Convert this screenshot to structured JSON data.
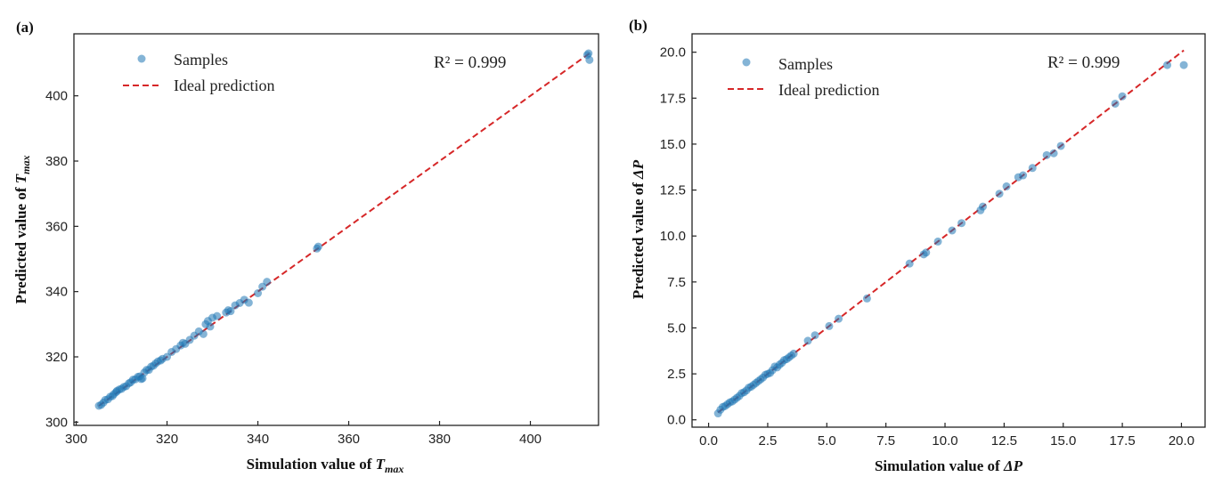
{
  "chart_data": [
    {
      "type": "scatter",
      "panel_label": "(a)",
      "xlabel_prefix": "Simulation value of",
      "ylabel_prefix": "Predicted value of",
      "variable": "T",
      "variable_sub": "max",
      "xlim": [
        299.5,
        415
      ],
      "ylim": [
        299,
        419
      ],
      "xticks": [
        300,
        320,
        340,
        360,
        380,
        400
      ],
      "yticks": [
        300,
        320,
        340,
        360,
        380,
        400
      ],
      "tick_decimals": 0,
      "legend": {
        "position": "top-left",
        "samples": "Samples",
        "ideal": "Ideal prediction"
      },
      "annotation": "R² = 0.999",
      "ideal_line": [
        [
          305,
          305
        ],
        [
          413,
          413
        ]
      ],
      "series": [
        {
          "name": "Samples",
          "points": [
            [
              305,
              305
            ],
            [
              305.5,
              305.3
            ],
            [
              306,
              306
            ],
            [
              306.4,
              306.8
            ],
            [
              307,
              307
            ],
            [
              307.5,
              307.8
            ],
            [
              308,
              308
            ],
            [
              308.3,
              308.6
            ],
            [
              308.8,
              309.2
            ],
            [
              309,
              309.6
            ],
            [
              309.5,
              310
            ],
            [
              310,
              310.2
            ],
            [
              310.5,
              310.8
            ],
            [
              311,
              311
            ],
            [
              311.6,
              311.9
            ],
            [
              312,
              312.2
            ],
            [
              312.5,
              313
            ],
            [
              313,
              313.1
            ],
            [
              313.6,
              313.9
            ],
            [
              314,
              314
            ],
            [
              314.3,
              313.2
            ],
            [
              314.6,
              313.4
            ],
            [
              315,
              315.2
            ],
            [
              315.5,
              316
            ],
            [
              316,
              316
            ],
            [
              316.5,
              317
            ],
            [
              317,
              317.3
            ],
            [
              317.5,
              318
            ],
            [
              318,
              318.6
            ],
            [
              318.6,
              318.9
            ],
            [
              319,
              319.4
            ],
            [
              320,
              320
            ],
            [
              321,
              321.5
            ],
            [
              322,
              322.4
            ],
            [
              323,
              323.5
            ],
            [
              323.5,
              324.3
            ],
            [
              324,
              324
            ],
            [
              325,
              325.2
            ],
            [
              326,
              326.5
            ],
            [
              327,
              327.8
            ],
            [
              328,
              327
            ],
            [
              328.5,
              330
            ],
            [
              329,
              331
            ],
            [
              329.5,
              329.3
            ],
            [
              330,
              332
            ],
            [
              331,
              332.5
            ],
            [
              333,
              333.6
            ],
            [
              333.5,
              334.3
            ],
            [
              334,
              334
            ],
            [
              335,
              335.8
            ],
            [
              336,
              336.5
            ],
            [
              337,
              337.5
            ],
            [
              338,
              336.6
            ],
            [
              340,
              339.5
            ],
            [
              341,
              341.5
            ],
            [
              342,
              343
            ],
            [
              353,
              353.2
            ],
            [
              353.3,
              353.8
            ],
            [
              412.5,
              412.5
            ],
            [
              413,
              411
            ],
            [
              412.8,
              413
            ]
          ]
        }
      ]
    },
    {
      "type": "scatter",
      "panel_label": "(b)",
      "xlabel_prefix": "Simulation value of",
      "ylabel_prefix": "Predicted value of",
      "variable": "ΔP",
      "variable_sub": "",
      "xlim": [
        -0.7,
        21
      ],
      "ylim": [
        -0.4,
        21
      ],
      "xticks": [
        0.0,
        2.5,
        5.0,
        7.5,
        10.0,
        12.5,
        15.0,
        17.5,
        20.0
      ],
      "yticks": [
        0.0,
        2.5,
        5.0,
        7.5,
        10.0,
        12.5,
        15.0,
        17.5,
        20.0
      ],
      "tick_decimals": 1,
      "legend": {
        "position": "top-left",
        "samples": "Samples",
        "ideal": "Ideal prediction"
      },
      "annotation": "R² = 0.999",
      "ideal_line": [
        [
          0.4,
          0.4
        ],
        [
          20.1,
          20.1
        ]
      ],
      "series": [
        {
          "name": "Samples",
          "points": [
            [
              0.4,
              0.35
            ],
            [
              0.5,
              0.55
            ],
            [
              0.6,
              0.7
            ],
            [
              0.7,
              0.75
            ],
            [
              0.8,
              0.85
            ],
            [
              0.9,
              0.95
            ],
            [
              1.0,
              1.0
            ],
            [
              1.1,
              1.1
            ],
            [
              1.2,
              1.2
            ],
            [
              1.3,
              1.3
            ],
            [
              1.4,
              1.45
            ],
            [
              1.5,
              1.5
            ],
            [
              1.6,
              1.6
            ],
            [
              1.7,
              1.75
            ],
            [
              1.8,
              1.8
            ],
            [
              1.9,
              1.9
            ],
            [
              2.0,
              2.0
            ],
            [
              2.1,
              2.1
            ],
            [
              2.2,
              2.2
            ],
            [
              2.3,
              2.3
            ],
            [
              2.4,
              2.45
            ],
            [
              2.5,
              2.5
            ],
            [
              2.6,
              2.55
            ],
            [
              2.7,
              2.7
            ],
            [
              2.8,
              2.9
            ],
            [
              2.9,
              2.85
            ],
            [
              3.0,
              3.0
            ],
            [
              3.1,
              3.1
            ],
            [
              3.2,
              3.25
            ],
            [
              3.3,
              3.3
            ],
            [
              3.4,
              3.4
            ],
            [
              3.5,
              3.5
            ],
            [
              3.6,
              3.6
            ],
            [
              4.2,
              4.3
            ],
            [
              4.5,
              4.6
            ],
            [
              5.1,
              5.1
            ],
            [
              5.5,
              5.5
            ],
            [
              6.7,
              6.6
            ],
            [
              8.5,
              8.5
            ],
            [
              9.1,
              9.0
            ],
            [
              9.2,
              9.1
            ],
            [
              9.7,
              9.7
            ],
            [
              10.3,
              10.3
            ],
            [
              10.7,
              10.7
            ],
            [
              11.5,
              11.4
            ],
            [
              11.6,
              11.6
            ],
            [
              12.3,
              12.3
            ],
            [
              12.6,
              12.7
            ],
            [
              13.1,
              13.2
            ],
            [
              13.3,
              13.3
            ],
            [
              13.7,
              13.7
            ],
            [
              14.3,
              14.4
            ],
            [
              14.6,
              14.5
            ],
            [
              14.9,
              14.9
            ],
            [
              17.2,
              17.2
            ],
            [
              17.5,
              17.6
            ],
            [
              19.4,
              19.3
            ],
            [
              20.1,
              19.3
            ]
          ]
        }
      ]
    }
  ]
}
